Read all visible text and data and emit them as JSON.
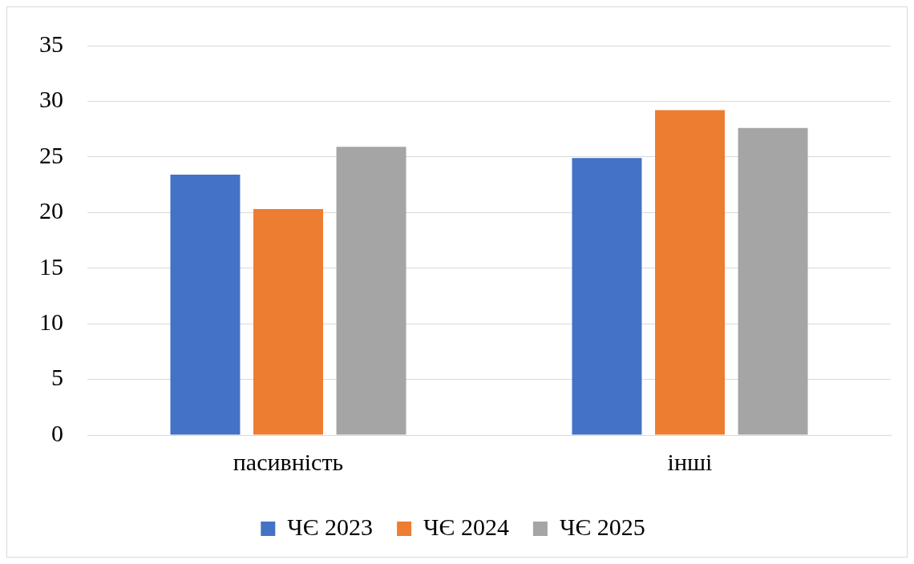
{
  "chart_data": {
    "type": "bar",
    "categories": [
      "пасивність",
      "інші"
    ],
    "series": [
      {
        "name": "ЧЄ 2023",
        "color": "#4472c4",
        "values": [
          23.4,
          24.9
        ]
      },
      {
        "name": "ЧЄ 2024",
        "color": "#ed7d31",
        "values": [
          20.3,
          29.2
        ]
      },
      {
        "name": "ЧЄ 2025",
        "color": "#a5a5a5",
        "values": [
          25.9,
          27.6
        ]
      }
    ],
    "ylim": [
      0,
      35
    ],
    "yticks": [
      0,
      5,
      10,
      15,
      20,
      25,
      30,
      35
    ],
    "grid": "y",
    "legend": "bottom"
  }
}
